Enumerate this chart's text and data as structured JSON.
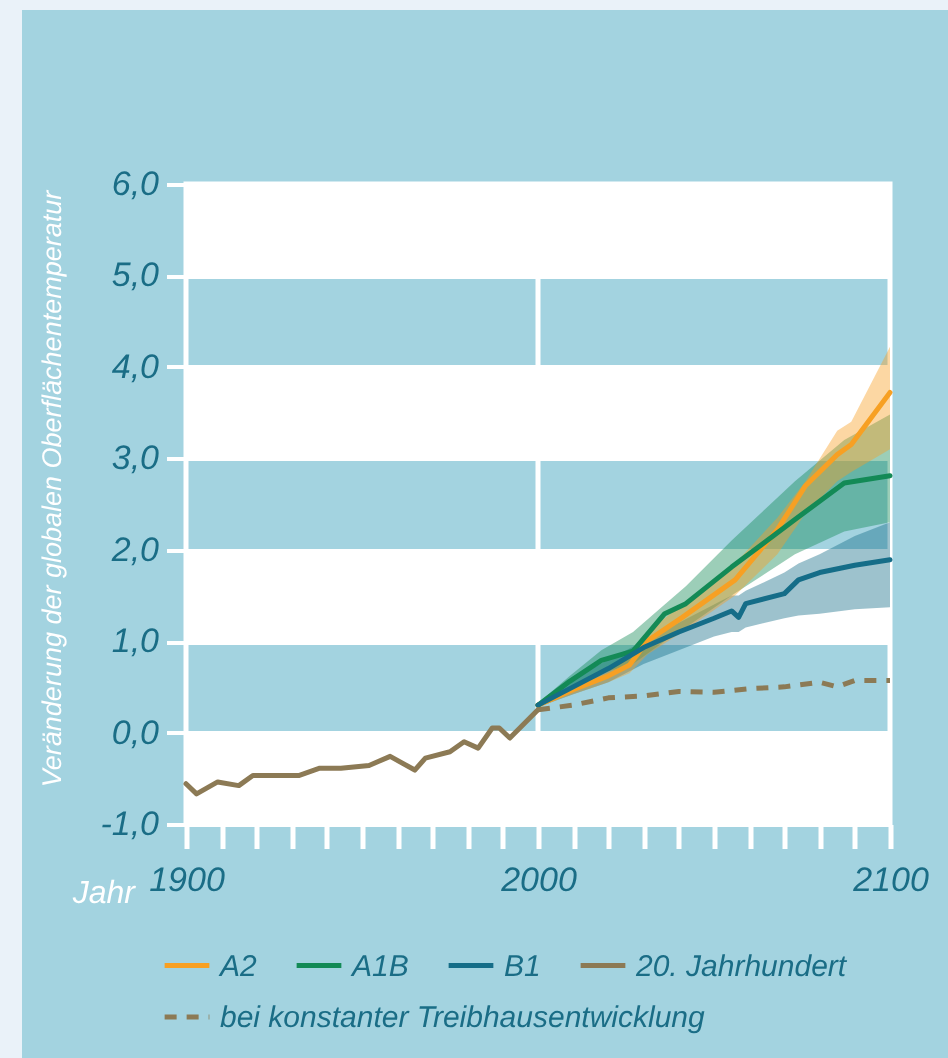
{
  "chart_data": {
    "type": "line",
    "xlabel": "Jahr",
    "ylabel": "Veränderung der globalen Oberflächentemperatur",
    "xlim": [
      1900,
      2100
    ],
    "ylim": [
      -1,
      6
    ],
    "xticks": [
      1900,
      {
        "value": 1910,
        "label": null
      },
      {
        "value": 1920,
        "label": null
      },
      {
        "value": 1930,
        "label": null
      },
      {
        "value": 1940,
        "label": null
      },
      {
        "value": 1950,
        "label": null
      },
      {
        "value": 1960,
        "label": null
      },
      {
        "value": 1970,
        "label": null
      },
      {
        "value": 1980,
        "label": null
      },
      {
        "value": 1990,
        "label": null
      },
      2000,
      {
        "value": 2010,
        "label": null
      },
      {
        "value": 2020,
        "label": null
      },
      {
        "value": 2030,
        "label": null
      },
      {
        "value": 2040,
        "label": null
      },
      {
        "value": 2050,
        "label": null
      },
      {
        "value": 2060,
        "label": null
      },
      {
        "value": 2070,
        "label": null
      },
      {
        "value": 2080,
        "label": null
      },
      {
        "value": 2090,
        "label": null
      },
      2100
    ],
    "yticks": [
      {
        "value": -1,
        "label": "-1,0"
      },
      {
        "value": 0,
        "label": "0,0"
      },
      {
        "value": 1,
        "label": "1,0"
      },
      {
        "value": 2,
        "label": "2,0"
      },
      {
        "value": 3,
        "label": "3,0"
      },
      {
        "value": 4,
        "label": "4,0"
      },
      {
        "value": 5,
        "label": "5,0"
      },
      {
        "value": 6,
        "label": "6,0"
      }
    ],
    "grid": "y",
    "legend": "bottom",
    "ref_lines": [
      {
        "axis": "x",
        "value": 2000,
        "color": "#ffffff"
      }
    ],
    "bands": [
      {
        "axis": "y",
        "from": 5,
        "to": 6,
        "color": "#ffffff"
      },
      {
        "axis": "y",
        "from": 3,
        "to": 4,
        "color": "#ffffff"
      },
      {
        "axis": "y",
        "from": 1,
        "to": 2,
        "color": "#ffffff"
      },
      {
        "axis": "y",
        "from": -1,
        "to": 0,
        "color": "#ffffff"
      }
    ],
    "series": [
      {
        "name": "A2",
        "color": "#f7a023",
        "x": [
          2000,
          2010,
          2020,
          2026,
          2031,
          2041,
          2056,
          2068,
          2076,
          2085,
          2089,
          2100
        ],
        "values": [
          0.3,
          0.47,
          0.62,
          0.74,
          1.0,
          1.26,
          1.67,
          2.22,
          2.7,
          3.04,
          3.15,
          3.72
        ],
        "lower": [
          0.28,
          0.42,
          0.55,
          0.65,
          0.85,
          1.1,
          1.5,
          1.95,
          2.4,
          2.75,
          2.85,
          3.1
        ],
        "upper": [
          0.32,
          0.52,
          0.7,
          0.85,
          1.1,
          1.4,
          1.85,
          2.35,
          2.75,
          3.3,
          3.4,
          4.22
        ]
      },
      {
        "name": "A1B",
        "color": "#138a56",
        "x": [
          2000,
          2009,
          2018,
          2027,
          2036,
          2042,
          2055,
          2073,
          2087,
          2100
        ],
        "values": [
          0.3,
          0.56,
          0.79,
          0.89,
          1.3,
          1.41,
          1.81,
          2.33,
          2.73,
          2.81
        ],
        "lower": [
          0.28,
          0.48,
          0.65,
          0.75,
          1.0,
          1.15,
          1.5,
          1.95,
          2.2,
          2.3
        ],
        "upper": [
          0.32,
          0.62,
          0.9,
          1.1,
          1.4,
          1.6,
          2.1,
          2.75,
          3.2,
          3.48
        ]
      },
      {
        "name": "B1",
        "color": "#156d88",
        "x": [
          2000,
          2010,
          2020,
          2030,
          2040,
          2050,
          2055,
          2057,
          2059,
          2070,
          2074,
          2080,
          2090,
          2100
        ],
        "values": [
          0.3,
          0.5,
          0.7,
          0.93,
          1.1,
          1.25,
          1.33,
          1.26,
          1.41,
          1.52,
          1.67,
          1.75,
          1.83,
          1.89
        ],
        "lower": [
          0.28,
          0.42,
          0.55,
          0.75,
          0.9,
          1.05,
          1.1,
          1.1,
          1.15,
          1.25,
          1.28,
          1.3,
          1.35,
          1.37
        ],
        "upper": [
          0.32,
          0.58,
          0.8,
          1.0,
          1.2,
          1.4,
          1.5,
          1.5,
          1.55,
          1.75,
          1.85,
          1.95,
          2.15,
          2.3
        ]
      },
      {
        "name": "20. Jahrhundert",
        "color": "#8c7a55",
        "x": [
          1900,
          1903,
          1909,
          1915,
          1919,
          1932,
          1938,
          1944,
          1952,
          1958,
          1965,
          1968,
          1975,
          1979,
          1983,
          1987,
          1989,
          1992,
          2000
        ],
        "values": [
          -0.56,
          -0.67,
          -0.54,
          -0.58,
          -0.47,
          -0.47,
          -0.39,
          -0.39,
          -0.36,
          -0.26,
          -0.41,
          -0.28,
          -0.21,
          -0.1,
          -0.17,
          0.05,
          0.05,
          -0.06,
          0.25
        ]
      },
      {
        "name": "bei konstanter Treibhausentwicklung",
        "color": "#8c7a55",
        "line_style": "dashed",
        "x": [
          2000,
          2010,
          2020,
          2030,
          2040,
          2050,
          2060,
          2070,
          2080,
          2085,
          2090,
          2100
        ],
        "values": [
          0.25,
          0.3,
          0.38,
          0.4,
          0.45,
          0.44,
          0.48,
          0.5,
          0.55,
          0.5,
          0.57,
          0.57
        ]
      }
    ]
  }
}
